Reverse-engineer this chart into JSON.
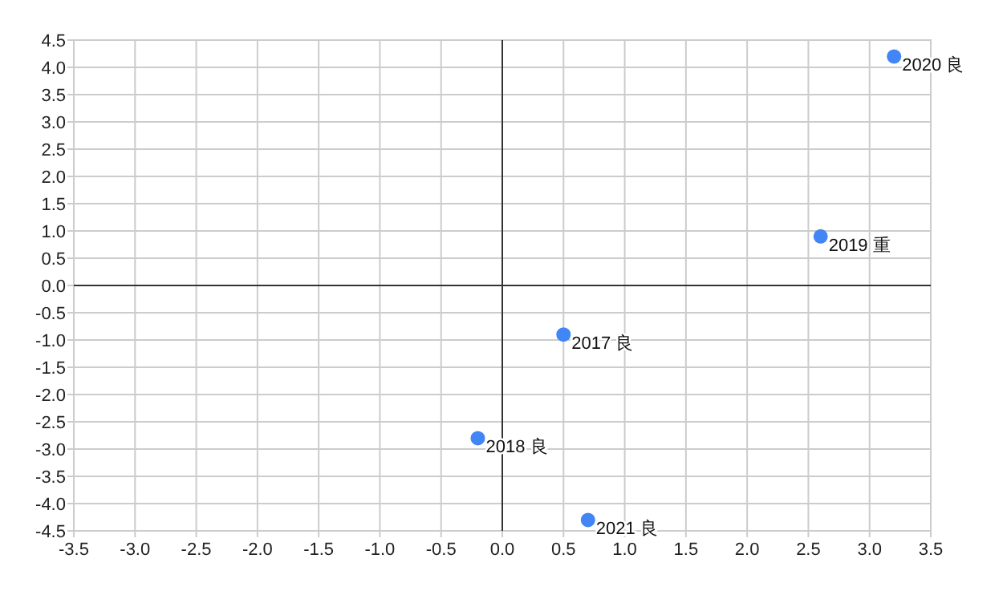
{
  "chart_data": {
    "type": "scatter",
    "x": [
      0.5,
      -0.2,
      2.6,
      3.2,
      0.7
    ],
    "values": [
      -0.9,
      -2.8,
      0.9,
      4.2,
      -4.3
    ],
    "annotations": [
      {
        "text": "2017 良",
        "x": 0.5,
        "y": -0.9
      },
      {
        "text": "2018 良",
        "x": -0.2,
        "y": -2.8
      },
      {
        "text": "2019 重",
        "x": 2.6,
        "y": 0.9
      },
      {
        "text": "2020 良",
        "x": 3.2,
        "y": 4.2
      },
      {
        "text": "2021 良",
        "x": 0.7,
        "y": -4.3
      }
    ],
    "color": "#4285f4",
    "marker": "circle",
    "xlim": [
      -3.5,
      3.5
    ],
    "ylim": [
      -4.5,
      4.5
    ],
    "xticks": [
      {
        "value": -3.5,
        "label": "-3.5"
      },
      {
        "value": -3,
        "label": "-3.0"
      },
      {
        "value": -2.5,
        "label": "-2.5"
      },
      {
        "value": -2,
        "label": "-2.0"
      },
      {
        "value": -1.5,
        "label": "-1.5"
      },
      {
        "value": -1,
        "label": "-1.0"
      },
      {
        "value": -0.5,
        "label": "-0.5"
      },
      {
        "value": 0,
        "label": "0.0"
      },
      0.5,
      {
        "value": 1,
        "label": "1.0"
      },
      1.5,
      {
        "value": 2,
        "label": "2.0"
      },
      2.5,
      {
        "value": 3,
        "label": "3.0"
      },
      3.5
    ],
    "yticks": [
      {
        "value": -4.5,
        "label": "-4.5"
      },
      {
        "value": -4,
        "label": "-4.0"
      },
      {
        "value": -3.5,
        "label": "-3.5"
      },
      {
        "value": -3,
        "label": "-3.0"
      },
      {
        "value": -2.5,
        "label": "-2.5"
      },
      {
        "value": -2,
        "label": "-2.0"
      },
      {
        "value": -1.5,
        "label": "-1.5"
      },
      {
        "value": -1,
        "label": "-1.0"
      },
      {
        "value": -0.5,
        "label": "-0.5"
      },
      {
        "value": 0,
        "label": "0.0"
      },
      0.5,
      {
        "value": 1,
        "label": "1.0"
      },
      1.5,
      {
        "value": 2,
        "label": "2.0"
      },
      2.5,
      {
        "value": 3,
        "label": "3.0"
      },
      3.5,
      {
        "value": 4,
        "label": "4.0"
      },
      4.5
    ],
    "grid": true
  }
}
